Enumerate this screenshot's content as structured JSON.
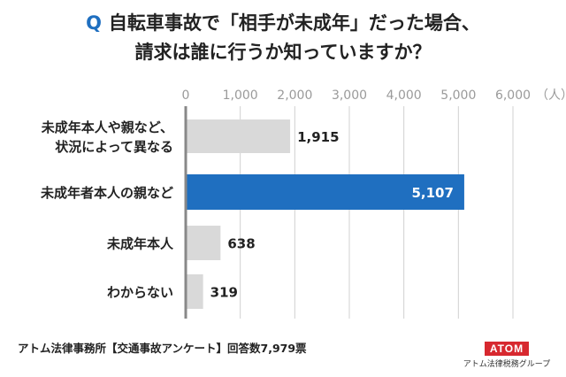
{
  "title": {
    "q_mark": "Q",
    "line1": "自転車事故で「相手が未成年」だった場合、",
    "line2": "請求は誰に行うか知っていますか？"
  },
  "chart_data": {
    "type": "bar",
    "orientation": "horizontal",
    "categories": [
      [
        "未成年本人や親など、",
        "状況によって異なる"
      ],
      [
        "未成年者本人の親など"
      ],
      [
        "未成年本人"
      ],
      [
        "わからない"
      ]
    ],
    "values": [
      1915,
      5107,
      638,
      319
    ],
    "value_labels": [
      "1,915",
      "5,107",
      "638",
      "319"
    ],
    "xlim": [
      0,
      6000
    ],
    "x_ticks": [
      0,
      1000,
      2000,
      3000,
      4000,
      5000,
      6000
    ],
    "x_tick_labels": [
      "0",
      "1,000",
      "2,000",
      "3,000",
      "4,000",
      "5,000",
      "6,000"
    ],
    "unit_label": "（人）",
    "grid": true,
    "highlight_index": 1,
    "colors": {
      "bar": "#d9d9d9",
      "highlight": "#1f6fc0",
      "grid": "#d0d0d0",
      "axis": "#888888",
      "tick_text": "#9a9a9a"
    }
  },
  "footer": "アトム法律事務所【交通事故アンケート】回答数7,979票",
  "logo": {
    "mark": "ATOM",
    "sub": "アトム法律税務グループ"
  }
}
